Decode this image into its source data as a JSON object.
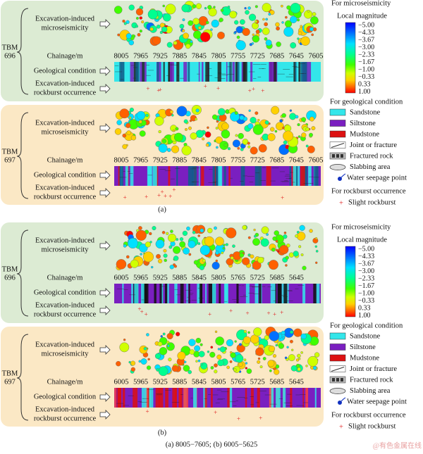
{
  "panels": [
    {
      "label": "(a)",
      "tbms": [
        {
          "tbm": "TBM",
          "number": "696"
        },
        {
          "tbm": "TBM",
          "number": "697"
        }
      ],
      "row_labels": {
        "microseismicity": [
          "Excavation-induced",
          "microseismicity"
        ],
        "chainage": "Chainage/m",
        "geology": "Geological condition",
        "rockburst": [
          "Excavation-induced",
          "rockburst occurrence"
        ]
      },
      "chainage_ticks": [
        "8005",
        "7965",
        "7925",
        "7885",
        "7845",
        "7805",
        "7755",
        "7725",
        "7685",
        "7645",
        "7605"
      ],
      "legend": {
        "microseismicity_title": "For microseismicity",
        "magnitude_title": "Local magnitude",
        "magnitude_ticks": [
          "−5.00",
          "−4.33",
          "−3.67",
          "−3.00",
          "−2.33",
          "−1.67",
          "−1.00",
          "−0.33",
          "0.33",
          "1.00"
        ],
        "geology_title": "For geological condition",
        "geology_items": [
          "Sandstone",
          "Siltstone",
          "Mudstone",
          "Joint or fracture",
          "Fractured rock",
          "Slabbing area",
          "Water seepage point"
        ],
        "rockburst_title": "For rockburst occurrence",
        "rockburst_item": "Slight rockburst"
      }
    },
    {
      "label": "(b)",
      "tbms": [
        {
          "tbm": "TBM",
          "number": "696"
        },
        {
          "tbm": "TBM",
          "number": "697"
        }
      ],
      "row_labels": {
        "microseismicity": [
          "Excavation-induced",
          "microseismicity"
        ],
        "chainage": "Chainage/m",
        "geology": "Geological condition",
        "rockburst": [
          "Excavation-induced",
          "rockburst occurrence"
        ]
      },
      "chainage_ticks": [
        "6005",
        "5965",
        "5925",
        "5885",
        "5845",
        "5805",
        "5765",
        "5725",
        "5685",
        "5645"
      ],
      "legend": {
        "microseismicity_title": "For microseismicity",
        "magnitude_title": "Local magnitude",
        "magnitude_ticks": [
          "−5.00",
          "−4.33",
          "−3.67",
          "−3.00",
          "−2.33",
          "−1.67",
          "−1.00",
          "−0.33",
          "0.33",
          "1.00"
        ],
        "geology_title": "For geological condition",
        "geology_items": [
          "Sandstone",
          "Siltstone",
          "Mudstone",
          "Joint or fracture",
          "Fractured rock",
          "Slabbing area",
          "Water seepage point"
        ],
        "rockburst_title": "For rockburst occurrence",
        "rockburst_item": "Slight rockburst"
      }
    }
  ],
  "caption": "(a) 8005−7605; (b) 6005−5625",
  "watermark": "@有色金属在线"
}
